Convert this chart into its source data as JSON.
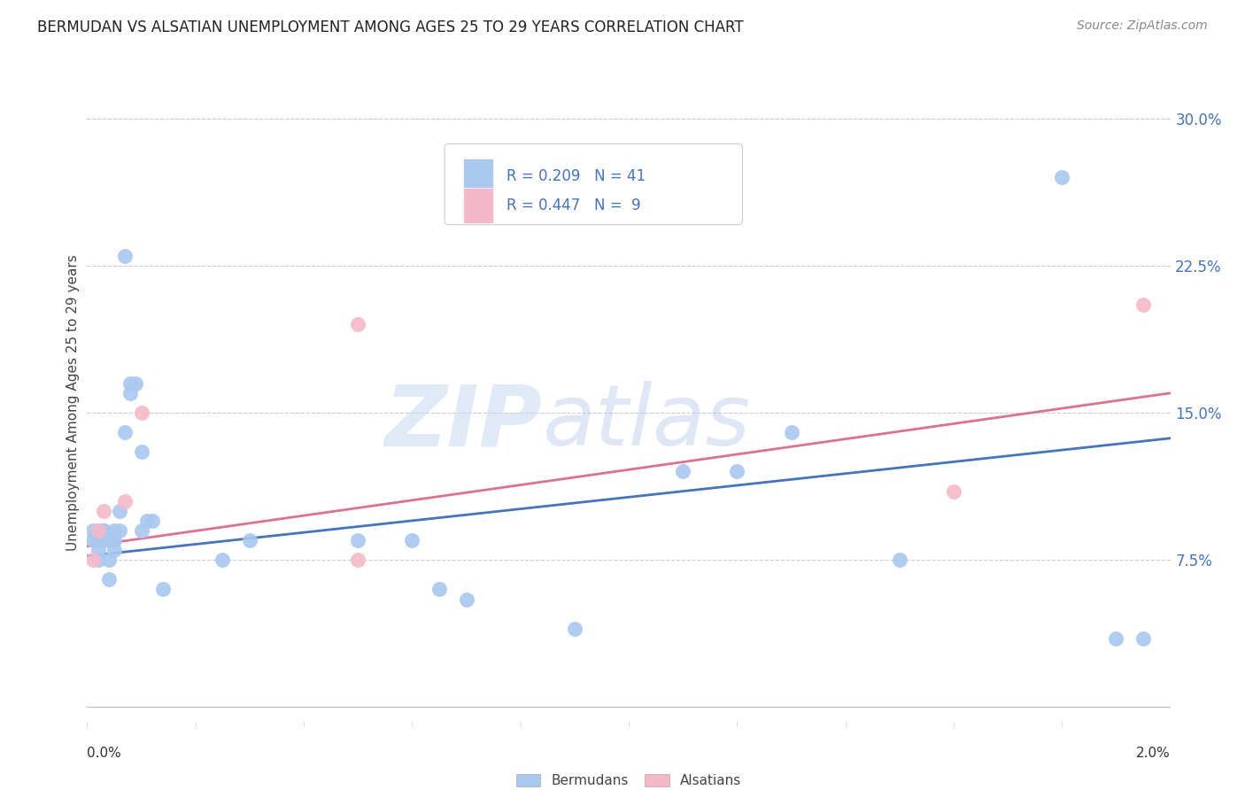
{
  "title": "BERMUDAN VS ALSATIAN UNEMPLOYMENT AMONG AGES 25 TO 29 YEARS CORRELATION CHART",
  "source": "Source: ZipAtlas.com",
  "ylabel": "Unemployment Among Ages 25 to 29 years",
  "ytick_labels": [
    "7.5%",
    "15.0%",
    "22.5%",
    "30.0%"
  ],
  "ytick_values": [
    0.075,
    0.15,
    0.225,
    0.3
  ],
  "xlim": [
    0.0,
    0.02
  ],
  "ylim": [
    -0.01,
    0.32
  ],
  "plot_ylim": [
    -0.01,
    0.32
  ],
  "bermuda_color": "#a8c8f0",
  "alsatian_color": "#f5b8c8",
  "bermuda_line_color": "#4472c4",
  "alsatian_line_color": "#e07090",
  "watermark_zip": "ZIP",
  "watermark_atlas": "atlas",
  "legend_r_bermuda": "R = 0.209",
  "legend_n_bermuda": "N = 41",
  "legend_r_alsatian": "R = 0.447",
  "legend_n_alsatian": "N =  9",
  "bermuda_x": [
    0.0001,
    0.0001,
    0.0002,
    0.0002,
    0.0002,
    0.0002,
    0.0003,
    0.0003,
    0.0003,
    0.0004,
    0.0004,
    0.0004,
    0.0005,
    0.0005,
    0.0005,
    0.0006,
    0.0006,
    0.0007,
    0.0007,
    0.0008,
    0.0008,
    0.0009,
    0.001,
    0.001,
    0.0011,
    0.0012,
    0.0014,
    0.0025,
    0.003,
    0.005,
    0.006,
    0.0065,
    0.007,
    0.009,
    0.011,
    0.012,
    0.013,
    0.015,
    0.018,
    0.019,
    0.0195
  ],
  "bermuda_y": [
    0.085,
    0.09,
    0.08,
    0.085,
    0.09,
    0.075,
    0.09,
    0.085,
    0.09,
    0.065,
    0.075,
    0.085,
    0.08,
    0.09,
    0.085,
    0.1,
    0.09,
    0.14,
    0.23,
    0.16,
    0.165,
    0.165,
    0.13,
    0.09,
    0.095,
    0.095,
    0.06,
    0.075,
    0.085,
    0.085,
    0.085,
    0.06,
    0.055,
    0.04,
    0.12,
    0.12,
    0.14,
    0.075,
    0.27,
    0.035,
    0.035
  ],
  "alsatian_x": [
    0.0001,
    0.0002,
    0.0003,
    0.0007,
    0.001,
    0.005,
    0.005,
    0.016,
    0.0195
  ],
  "alsatian_y": [
    0.075,
    0.09,
    0.1,
    0.105,
    0.15,
    0.195,
    0.075,
    0.11,
    0.205
  ],
  "bermuda_trend_y": [
    0.077,
    0.137
  ],
  "alsatian_trend_y": [
    0.082,
    0.16
  ],
  "trend_x": [
    0.0,
    0.02
  ],
  "title_fontsize": 12,
  "source_fontsize": 10,
  "ylabel_fontsize": 11,
  "tick_fontsize": 12
}
